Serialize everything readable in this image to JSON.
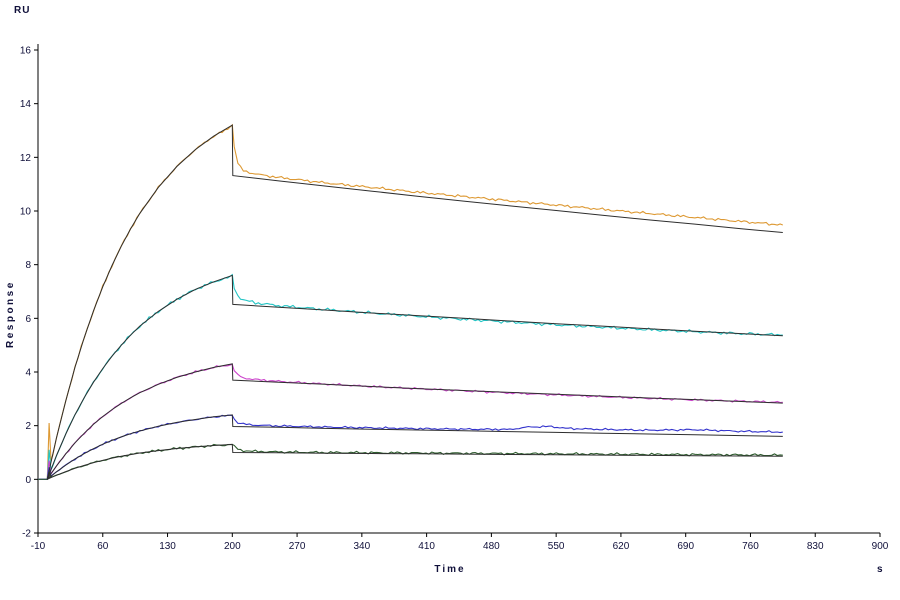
{
  "chart_data": {
    "type": "line",
    "title": "",
    "ylabel": "Response",
    "y_unit": "RU",
    "xlabel": "Time",
    "x_unit": "s",
    "xlim": [
      -10,
      900
    ],
    "ylim": [
      -2,
      16
    ],
    "x_ticks": [
      -10,
      60,
      130,
      200,
      270,
      340,
      410,
      480,
      550,
      620,
      690,
      760,
      830,
      900
    ],
    "y_ticks": [
      -2,
      0,
      2,
      4,
      6,
      8,
      10,
      12,
      14,
      16
    ],
    "grid": false,
    "legend": "none",
    "axis_color": "#000000",
    "tick_text_color": "#10103a",
    "fit_color": "#2e2e2e",
    "association_end_s": 200,
    "series": [
      {
        "name": "curve-1-orange",
        "color": "#dd9933",
        "noise": 0.06,
        "x": [
          -10,
          0,
          2,
          4,
          6,
          10,
          20,
          30,
          40,
          50,
          60,
          70,
          80,
          90,
          100,
          120,
          140,
          160,
          180,
          195,
          200,
          202,
          206,
          212,
          225,
          250,
          300,
          350,
          400,
          450,
          500,
          550,
          600,
          650,
          700,
          750,
          795
        ],
        "y": [
          0,
          0,
          2.1,
          0.7,
          0.9,
          1.55,
          2.93,
          4.18,
          5.29,
          6.28,
          7.18,
          7.97,
          8.69,
          9.33,
          9.91,
          10.88,
          11.66,
          12.29,
          12.79,
          13.05,
          13.2,
          12.4,
          11.75,
          11.5,
          11.38,
          11.25,
          11.05,
          10.88,
          10.7,
          10.54,
          10.38,
          10.22,
          10.06,
          9.91,
          9.76,
          9.61,
          9.48
        ]
      },
      {
        "name": "curve-2-cyan",
        "color": "#22c4c4",
        "noise": 0.07,
        "x": [
          -10,
          0,
          2,
          4,
          6,
          10,
          20,
          30,
          40,
          50,
          60,
          70,
          80,
          90,
          100,
          120,
          140,
          160,
          180,
          195,
          200,
          202,
          206,
          212,
          225,
          250,
          300,
          350,
          400,
          450,
          500,
          550,
          600,
          650,
          700,
          750,
          795
        ],
        "y": [
          0,
          0,
          1.1,
          0.35,
          0.5,
          0.89,
          1.69,
          2.41,
          3.05,
          3.62,
          4.13,
          4.59,
          5.0,
          5.37,
          5.71,
          6.26,
          6.71,
          7.08,
          7.36,
          7.52,
          7.6,
          7.15,
          6.85,
          6.68,
          6.58,
          6.47,
          6.33,
          6.2,
          6.08,
          5.97,
          5.86,
          5.76,
          5.67,
          5.58,
          5.5,
          5.43,
          5.38
        ]
      },
      {
        "name": "curve-3-magenta",
        "color": "#cc44cc",
        "noise": 0.05,
        "x": [
          -10,
          0,
          2,
          4,
          6,
          10,
          20,
          30,
          40,
          50,
          60,
          70,
          80,
          90,
          100,
          120,
          140,
          160,
          180,
          195,
          200,
          202,
          206,
          212,
          225,
          250,
          300,
          350,
          400,
          450,
          500,
          550,
          600,
          650,
          700,
          750,
          795
        ],
        "y": [
          0,
          0,
          0.7,
          0.2,
          0.3,
          0.5,
          0.95,
          1.36,
          1.72,
          2.05,
          2.34,
          2.6,
          2.83,
          3.04,
          3.23,
          3.54,
          3.8,
          4.0,
          4.17,
          4.25,
          4.3,
          4.05,
          3.88,
          3.78,
          3.72,
          3.65,
          3.55,
          3.46,
          3.38,
          3.3,
          3.22,
          3.15,
          3.08,
          3.02,
          2.96,
          2.91,
          2.87
        ]
      },
      {
        "name": "curve-4-blue",
        "color": "#3333cc",
        "noise": 0.045,
        "x": [
          -10,
          0,
          2,
          4,
          6,
          10,
          20,
          30,
          40,
          50,
          60,
          70,
          80,
          90,
          100,
          120,
          140,
          160,
          180,
          195,
          200,
          202,
          206,
          212,
          225,
          250,
          300,
          350,
          400,
          450,
          500,
          520,
          545,
          560,
          600,
          650,
          700,
          750,
          795
        ],
        "y": [
          0,
          0,
          0.45,
          0.12,
          0.18,
          0.28,
          0.53,
          0.76,
          0.96,
          1.14,
          1.31,
          1.45,
          1.58,
          1.7,
          1.8,
          1.98,
          2.12,
          2.23,
          2.33,
          2.37,
          2.4,
          2.26,
          2.12,
          2.06,
          2.02,
          1.99,
          1.95,
          1.92,
          1.89,
          1.87,
          1.86,
          1.95,
          1.97,
          1.9,
          1.86,
          1.83,
          1.85,
          1.79,
          1.76
        ]
      },
      {
        "name": "curve-5-green",
        "color": "#2e5c2e",
        "noise": 0.055,
        "x": [
          -10,
          0,
          2,
          4,
          6,
          10,
          20,
          30,
          40,
          50,
          60,
          70,
          80,
          90,
          100,
          120,
          140,
          160,
          180,
          195,
          200,
          202,
          206,
          212,
          225,
          250,
          300,
          350,
          400,
          450,
          500,
          550,
          600,
          650,
          700,
          750,
          795
        ],
        "y": [
          0,
          0,
          0.3,
          0.08,
          0.1,
          0.15,
          0.29,
          0.41,
          0.52,
          0.62,
          0.71,
          0.79,
          0.86,
          0.92,
          0.98,
          1.07,
          1.15,
          1.21,
          1.26,
          1.28,
          1.3,
          1.22,
          1.12,
          1.07,
          1.04,
          1.02,
          1.0,
          0.99,
          0.98,
          0.97,
          0.96,
          0.95,
          0.94,
          0.93,
          0.92,
          0.91,
          0.9
        ]
      }
    ],
    "fits": [
      {
        "name": "fit-1-orange",
        "x": [
          0,
          5,
          10,
          20,
          30,
          40,
          50,
          60,
          70,
          80,
          90,
          100,
          120,
          140,
          160,
          180,
          200,
          200.5,
          250,
          300,
          350,
          400,
          450,
          500,
          550,
          600,
          650,
          700,
          750,
          795
        ],
        "y": [
          0,
          0.79,
          1.55,
          2.93,
          4.18,
          5.29,
          6.28,
          7.18,
          7.97,
          8.69,
          9.33,
          9.91,
          10.88,
          11.66,
          12.29,
          12.79,
          13.2,
          11.32,
          11.12,
          10.93,
          10.74,
          10.55,
          10.37,
          10.19,
          10.02,
          9.84,
          9.67,
          9.51,
          9.34,
          9.2
        ]
      },
      {
        "name": "fit-2-cyan",
        "x": [
          0,
          5,
          10,
          20,
          30,
          40,
          50,
          60,
          70,
          80,
          90,
          100,
          120,
          140,
          160,
          180,
          200,
          200.5,
          250,
          300,
          350,
          400,
          450,
          500,
          550,
          600,
          650,
          700,
          750,
          795
        ],
        "y": [
          0,
          0.45,
          0.89,
          1.69,
          2.41,
          3.05,
          3.62,
          4.13,
          4.59,
          5.0,
          5.37,
          5.71,
          6.26,
          6.71,
          7.08,
          7.36,
          7.6,
          6.52,
          6.41,
          6.31,
          6.2,
          6.1,
          6.0,
          5.9,
          5.8,
          5.71,
          5.61,
          5.52,
          5.43,
          5.35
        ]
      },
      {
        "name": "fit-3-magenta",
        "x": [
          0,
          5,
          10,
          20,
          30,
          40,
          50,
          60,
          70,
          80,
          90,
          100,
          120,
          140,
          160,
          180,
          200,
          200.5,
          250,
          300,
          350,
          400,
          450,
          500,
          550,
          600,
          650,
          700,
          750,
          795
        ],
        "y": [
          0,
          0.26,
          0.5,
          0.95,
          1.36,
          1.72,
          2.05,
          2.34,
          2.6,
          2.83,
          3.04,
          3.23,
          3.54,
          3.8,
          4.0,
          4.17,
          4.3,
          3.7,
          3.62,
          3.54,
          3.46,
          3.38,
          3.31,
          3.24,
          3.17,
          3.1,
          3.03,
          2.97,
          2.9,
          2.84
        ]
      },
      {
        "name": "fit-4-blue",
        "x": [
          0,
          5,
          10,
          20,
          30,
          40,
          50,
          60,
          70,
          80,
          90,
          100,
          120,
          140,
          160,
          180,
          200,
          200.5,
          250,
          300,
          350,
          400,
          450,
          500,
          550,
          600,
          650,
          700,
          750,
          795
        ],
        "y": [
          0,
          0.14,
          0.28,
          0.53,
          0.76,
          0.96,
          1.14,
          1.31,
          1.45,
          1.58,
          1.7,
          1.8,
          1.98,
          2.12,
          2.23,
          2.33,
          2.4,
          1.97,
          1.94,
          1.9,
          1.87,
          1.84,
          1.81,
          1.78,
          1.75,
          1.72,
          1.69,
          1.66,
          1.63,
          1.6
        ]
      },
      {
        "name": "fit-5-green",
        "x": [
          0,
          5,
          10,
          20,
          30,
          40,
          50,
          60,
          70,
          80,
          90,
          100,
          120,
          140,
          160,
          180,
          200,
          200.5,
          250,
          300,
          350,
          400,
          450,
          500,
          550,
          600,
          650,
          700,
          750,
          795
        ],
        "y": [
          0,
          0.08,
          0.15,
          0.29,
          0.41,
          0.52,
          0.62,
          0.71,
          0.79,
          0.86,
          0.92,
          0.98,
          1.07,
          1.15,
          1.21,
          1.26,
          1.3,
          1.0,
          0.99,
          0.975,
          0.963,
          0.951,
          0.939,
          0.927,
          0.915,
          0.904,
          0.892,
          0.881,
          0.87,
          0.86
        ]
      }
    ]
  }
}
